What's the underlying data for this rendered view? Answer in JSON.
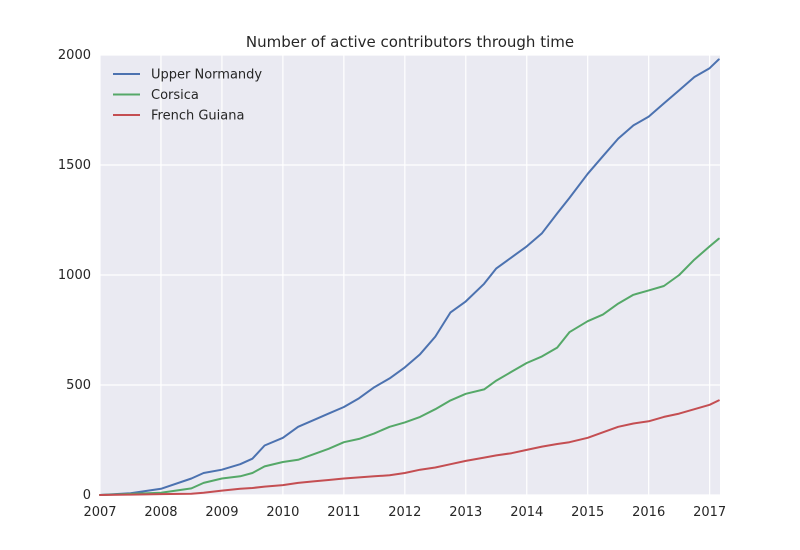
{
  "chart_data": {
    "type": "line",
    "title": "Number of active contributors through time",
    "xlabel": "",
    "ylabel": "",
    "xlim": [
      2007.0,
      2017.17
    ],
    "ylim": [
      0,
      2000
    ],
    "x_ticks": [
      2007,
      2008,
      2009,
      2010,
      2011,
      2012,
      2013,
      2014,
      2015,
      2016,
      2017
    ],
    "y_ticks": [
      0,
      500,
      1000,
      1500,
      2000
    ],
    "grid": true,
    "legend": "top-left",
    "x": [
      2007.0,
      2007.5,
      2008.0,
      2008.5,
      2008.7,
      2009.0,
      2009.3,
      2009.5,
      2009.7,
      2010.0,
      2010.25,
      2010.5,
      2010.75,
      2011.0,
      2011.25,
      2011.5,
      2011.75,
      2012.0,
      2012.25,
      2012.5,
      2012.75,
      2013.0,
      2013.3,
      2013.5,
      2013.75,
      2014.0,
      2014.25,
      2014.5,
      2014.7,
      2015.0,
      2015.25,
      2015.5,
      2015.75,
      2016.0,
      2016.25,
      2016.5,
      2016.75,
      2017.0,
      2017.15
    ],
    "series": [
      {
        "name": "Upper Normandy",
        "color": "#4c72b0",
        "values": [
          0,
          8,
          28,
          75,
          100,
          115,
          140,
          165,
          225,
          260,
          310,
          340,
          370,
          400,
          440,
          490,
          530,
          580,
          640,
          720,
          830,
          880,
          960,
          1030,
          1080,
          1130,
          1190,
          1280,
          1350,
          1460,
          1540,
          1620,
          1680,
          1720,
          1780,
          1840,
          1900,
          1940,
          1980
        ]
      },
      {
        "name": "Corsica",
        "color": "#55a868",
        "values": [
          0,
          5,
          10,
          30,
          55,
          75,
          85,
          100,
          130,
          150,
          160,
          185,
          210,
          240,
          255,
          280,
          310,
          330,
          355,
          390,
          430,
          460,
          480,
          520,
          560,
          600,
          630,
          670,
          740,
          790,
          820,
          870,
          910,
          930,
          950,
          1000,
          1070,
          1130,
          1165
        ]
      },
      {
        "name": "French Guiana",
        "color": "#c44e52",
        "values": [
          0,
          2,
          4,
          6,
          10,
          20,
          28,
          32,
          38,
          45,
          55,
          62,
          68,
          75,
          80,
          85,
          90,
          100,
          115,
          125,
          140,
          155,
          170,
          180,
          190,
          205,
          220,
          232,
          240,
          260,
          285,
          310,
          325,
          335,
          355,
          370,
          390,
          410,
          430
        ]
      }
    ]
  }
}
